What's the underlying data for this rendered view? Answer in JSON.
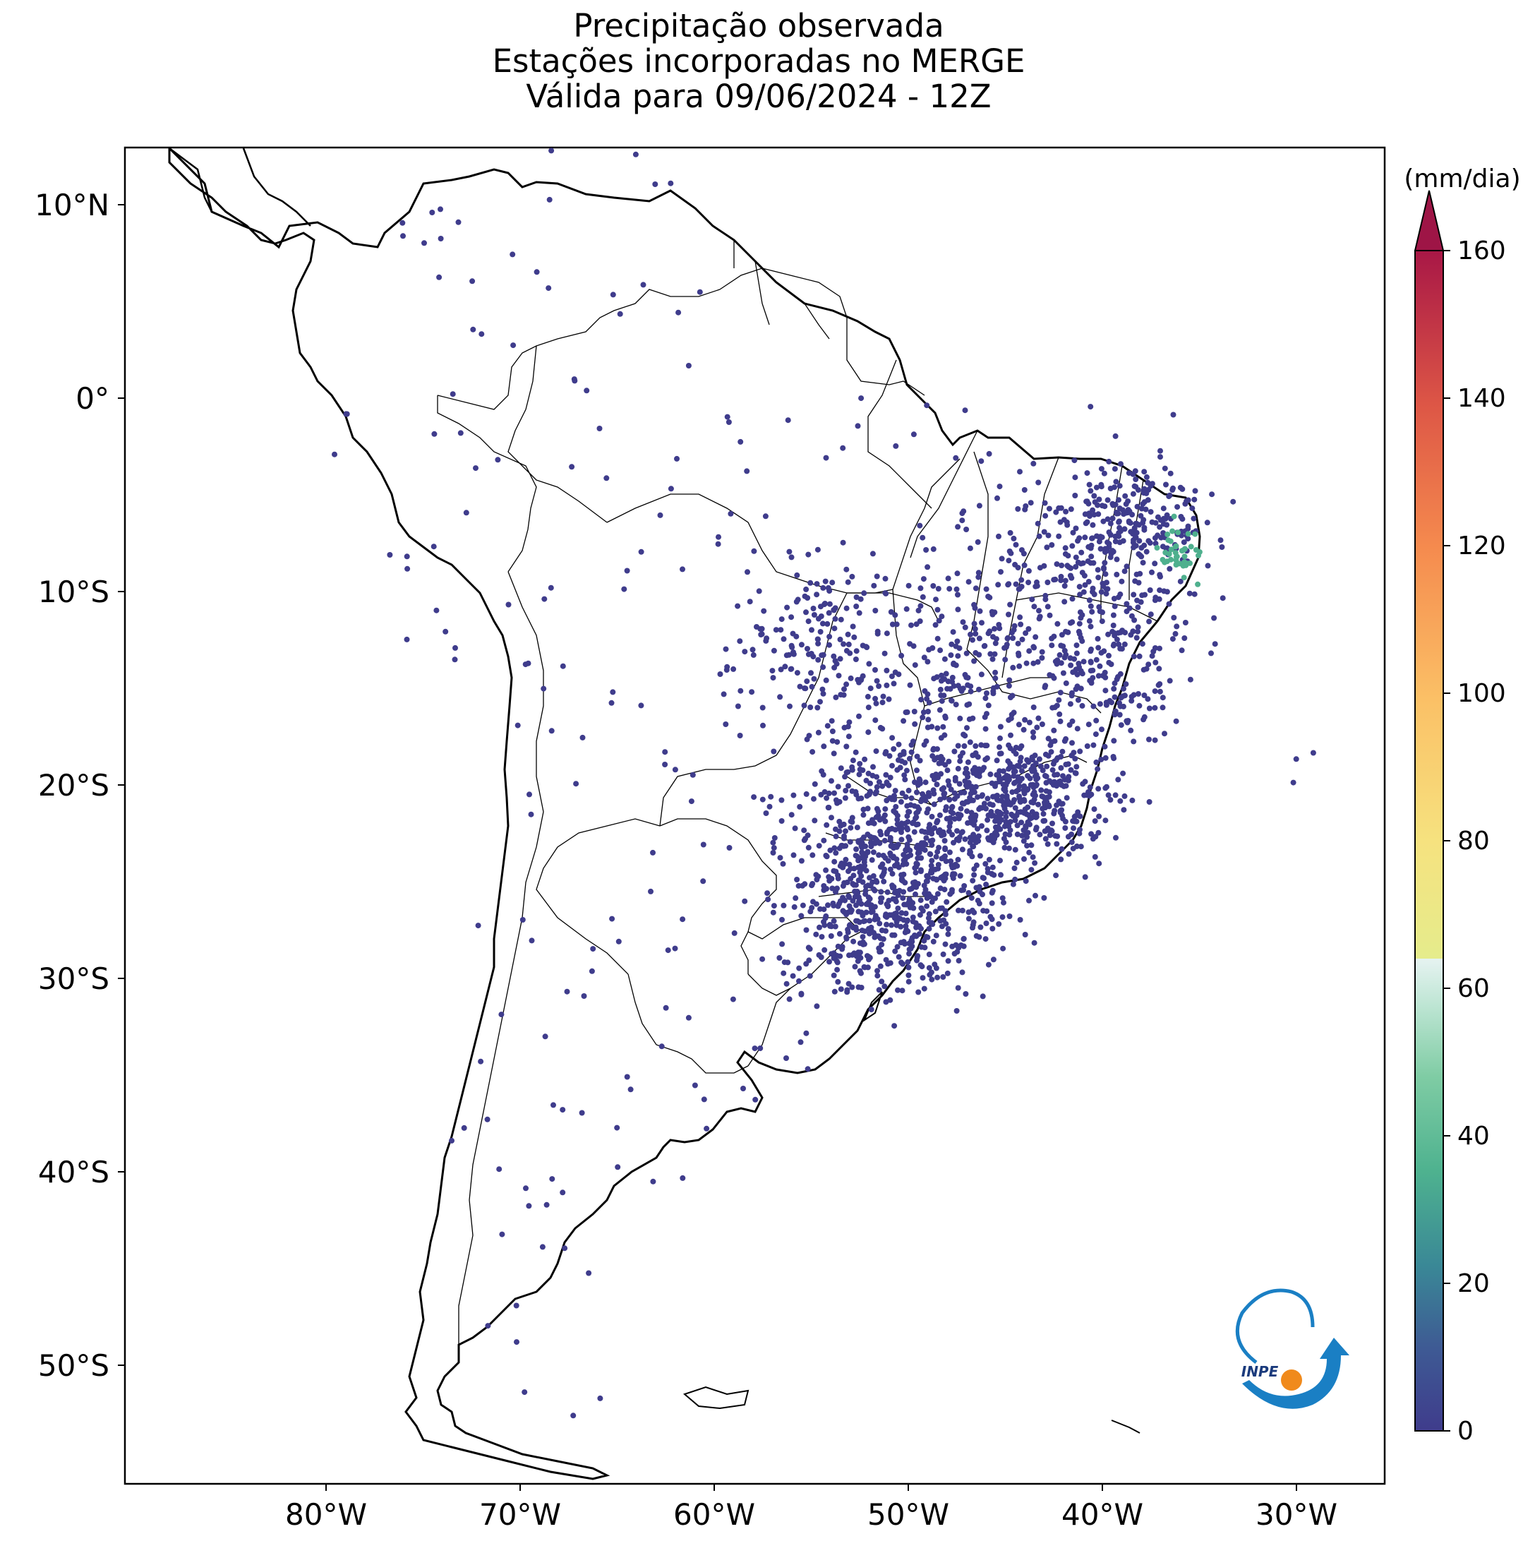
{
  "title": {
    "line1": "Precipitação observada",
    "line2": "Estações incorporadas no MERGE",
    "line3": "Válida para 09/06/2024 - 12Z"
  },
  "axes": {
    "lat_labels": [
      "10°N",
      "0°",
      "10°S",
      "20°S",
      "30°S",
      "40°S",
      "50°S"
    ],
    "lon_labels": [
      "80°W",
      "70°W",
      "60°W",
      "50°W",
      "40°W",
      "30°W"
    ]
  },
  "colorbar": {
    "unit": "(mm/dia)",
    "ticks": [
      "0",
      "20",
      "40",
      "60",
      "80",
      "100",
      "120",
      "140",
      "160"
    ],
    "extend": "max",
    "colors": [
      "#3f3c8c",
      "#3e5c94",
      "#3c8c96",
      "#4fb08e",
      "#84d0a4",
      "#bfe6d3",
      "#e4f1f0",
      "#e8ea8a",
      "#f8d877",
      "#fab65e",
      "#f48a4e",
      "#e35a45",
      "#c53a48",
      "#9e1546"
    ]
  },
  "logo": {
    "text": "INPE"
  },
  "chart_data": {
    "type": "scatter",
    "description_free": true,
    "xlim": [
      -92,
      -25
    ],
    "ylim": [
      -57,
      13
    ],
    "dominant_value_mm": 0,
    "station_clusters": [
      {
        "lon": -50.0,
        "lat": -24.0,
        "value_mm": 0
      },
      {
        "lon": -44.0,
        "lat": -21.0,
        "value_mm": 0
      },
      {
        "lon": -52.0,
        "lat": -27.0,
        "value_mm": 0
      },
      {
        "lon": -47.0,
        "lat": -14.0,
        "value_mm": 0
      },
      {
        "lon": -55.0,
        "lat": -13.0,
        "value_mm": 0
      },
      {
        "lon": -40.0,
        "lat": -7.0,
        "value_mm": 0
      },
      {
        "lon": -37.0,
        "lat": -8.5,
        "value_mm": 30
      }
    ]
  }
}
